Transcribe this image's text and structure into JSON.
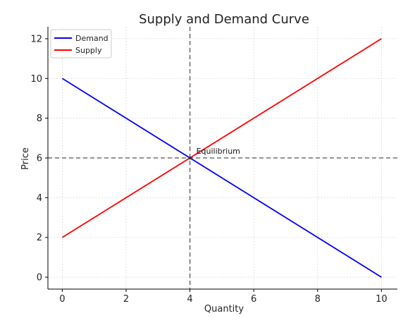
{
  "chart_data": {
    "type": "line",
    "title": "Supply and Demand Curve",
    "xlabel": "Quantity",
    "ylabel": "Price",
    "xlim": [
      -0.45,
      10.5
    ],
    "ylim": [
      -0.6,
      12.6
    ],
    "xticks": [
      0,
      2,
      4,
      6,
      8,
      10
    ],
    "yticks": [
      0,
      2,
      4,
      6,
      8,
      10,
      12
    ],
    "grid": true,
    "legend_position": "top-left",
    "series": [
      {
        "name": "Demand",
        "color": "#0000ff",
        "x": [
          0,
          10
        ],
        "y": [
          10,
          0
        ]
      },
      {
        "name": "Supply",
        "color": "#ff0000",
        "x": [
          0,
          10
        ],
        "y": [
          2,
          12
        ]
      }
    ],
    "reference_lines": [
      {
        "orientation": "vertical",
        "value": 4,
        "style": "dashed",
        "color": "#555555"
      },
      {
        "orientation": "horizontal",
        "value": 6,
        "style": "dashed",
        "color": "#555555"
      }
    ],
    "annotations": [
      {
        "text": "Equilibrium",
        "x": 4,
        "y": 6
      }
    ]
  }
}
